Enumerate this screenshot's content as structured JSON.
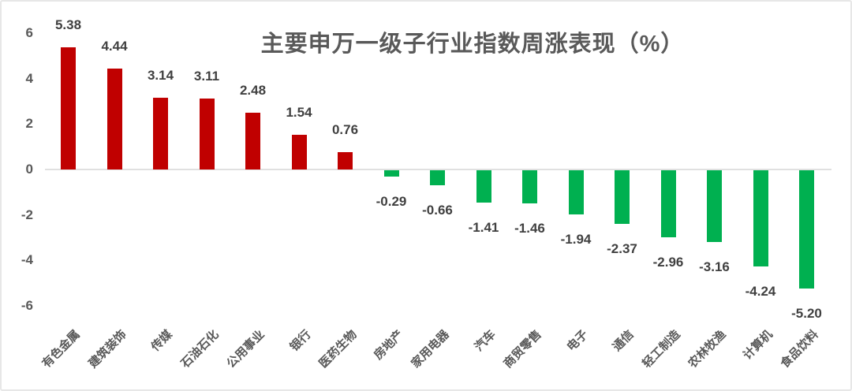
{
  "title": "主要申万一级子行业指数周涨表现（%）",
  "chart_data": {
    "type": "bar",
    "title": "主要申万一级子行业指数周涨表现（%）",
    "categories": [
      "有色金属",
      "建筑装饰",
      "传媒",
      "石油石化",
      "公用事业",
      "银行",
      "医药生物",
      "房地产",
      "家用电器",
      "汽车",
      "商贸零售",
      "电子",
      "通信",
      "轻工制造",
      "农林牧渔",
      "计算机",
      "食品饮料"
    ],
    "values": [
      5.38,
      4.44,
      3.14,
      3.11,
      2.48,
      1.54,
      0.76,
      -0.29,
      -0.66,
      -1.41,
      -1.46,
      -1.94,
      -2.37,
      -2.96,
      -3.16,
      -4.24,
      -5.2
    ],
    "value_labels": [
      "5.38",
      "4.44",
      "3.14",
      "3.11",
      "2.48",
      "1.54",
      "0.76",
      "-0.29",
      "-0.66",
      "-1.41",
      "-1.46",
      "-1.94",
      "-2.37",
      "-2.96",
      "-3.16",
      "-4.24",
      "-5.20"
    ],
    "xlabel": "",
    "ylabel": "",
    "ylim": [
      -6,
      6
    ],
    "yticks": [
      "6",
      "4",
      "2",
      "0",
      "-2",
      "-4",
      "-6"
    ],
    "ytick_values": [
      6,
      4,
      2,
      0,
      -2,
      -4,
      -6
    ],
    "grid": false,
    "legend": false,
    "bar_colors": {
      "positive": "#C00000",
      "negative": "#00B050"
    },
    "text_colors": {
      "title": "#595959",
      "value_labels": "#404040",
      "axis_labels": "#595959"
    },
    "zero_line_color": "#e0e0e0",
    "category_label_rotation_deg": 45
  }
}
